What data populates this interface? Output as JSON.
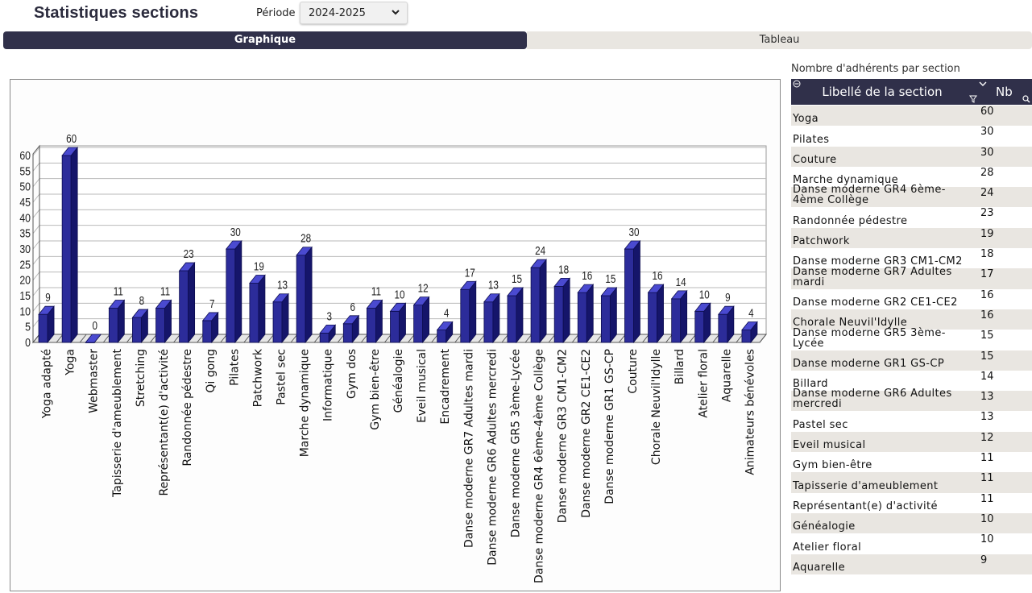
{
  "header": {
    "title": "Statistiques sections",
    "period_label": "Période",
    "period_value": "2024-2025"
  },
  "tabs": [
    {
      "label": "Graphique",
      "active": true
    },
    {
      "label": "Tableau",
      "active": false
    }
  ],
  "colors": {
    "dark": "#30304a",
    "bar": "#2c2c9a",
    "stripe": "#e9e6e1"
  },
  "table": {
    "caption": "Nombre d'adhérents par section",
    "col_label": "Libellé de la section",
    "col_nb": "Nb",
    "rows": [
      {
        "label": "Yoga",
        "nb": "60"
      },
      {
        "label": "Pilates",
        "nb": "30"
      },
      {
        "label": "Couture",
        "nb": "30"
      },
      {
        "label": "Marche dynamique",
        "nb": "28"
      },
      {
        "label": "Danse moderne GR4 6ème-4ème Collège",
        "nb": "24"
      },
      {
        "label": "Randonnée pédestre",
        "nb": "23"
      },
      {
        "label": "Patchwork",
        "nb": "19"
      },
      {
        "label": "Danse moderne GR3 CM1-CM2",
        "nb": "18"
      },
      {
        "label": "Danse moderne GR7 Adultes mardi",
        "nb": "17"
      },
      {
        "label": "Danse moderne GR2 CE1-CE2",
        "nb": "16"
      },
      {
        "label": "Chorale Neuvil'Idylle",
        "nb": "16"
      },
      {
        "label": "Danse moderne GR5 3ème-Lycée",
        "nb": "15"
      },
      {
        "label": "Danse moderne GR1 GS-CP",
        "nb": "15"
      },
      {
        "label": "Billard",
        "nb": "14"
      },
      {
        "label": "Danse moderne GR6 Adultes mercredi",
        "nb": "13"
      },
      {
        "label": "Pastel sec",
        "nb": "13"
      },
      {
        "label": "Eveil musical",
        "nb": "12"
      },
      {
        "label": "Gym bien-être",
        "nb": "11"
      },
      {
        "label": "Tapisserie d'ameublement",
        "nb": "11"
      },
      {
        "label": "Représentant(e) d'activité",
        "nb": "11"
      },
      {
        "label": "Généalogie",
        "nb": "10"
      },
      {
        "label": "Atelier floral",
        "nb": "10"
      },
      {
        "label": "Aquarelle",
        "nb": "9"
      }
    ]
  },
  "chart_data": {
    "type": "bar",
    "categories": [
      "Yoga adapté",
      "Yoga",
      "Webmaster",
      "Tapisserie d'ameublement",
      "Stretching",
      "Représentant(e) d'activité",
      "Randonnée pédestre",
      "Qi gong",
      "Pilates",
      "Patchwork",
      "Pastel sec",
      "Marche dynamique",
      "Informatique",
      "Gym dos",
      "Gym bien-être",
      "Généalogie",
      "Eveil musical",
      "Encadrement",
      "Danse moderne GR7 Adultes mardi",
      "Danse moderne GR6 Adultes mercredi",
      "Danse moderne GR5 3ème-Lycée",
      "Danse moderne GR4 6ème-4ème Collège",
      "Danse moderne GR3 CM1-CM2",
      "Danse moderne GR2 CE1-CE2",
      "Danse moderne GR1 GS-CP",
      "Couture",
      "Chorale Neuvil'Idylle",
      "Billard",
      "Atelier floral",
      "Aquarelle",
      "Animateurs bénévoles"
    ],
    "values": [
      9,
      60,
      0,
      11,
      8,
      11,
      23,
      7,
      30,
      19,
      13,
      28,
      3,
      6,
      11,
      10,
      12,
      4,
      17,
      13,
      15,
      24,
      18,
      16,
      15,
      30,
      16,
      14,
      10,
      9,
      4
    ],
    "y_ticks": [
      "0",
      "5",
      "10",
      "15",
      "20",
      "25",
      "30",
      "35",
      "40",
      "45",
      "50",
      "55",
      "60"
    ],
    "ylim": [
      0,
      60
    ],
    "grid": true,
    "legend": "none",
    "style": "3d"
  }
}
